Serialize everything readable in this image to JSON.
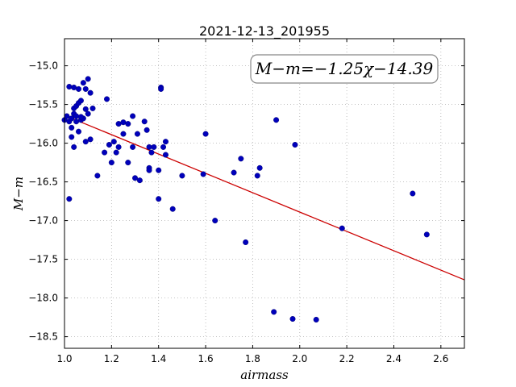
{
  "chart_data": {
    "type": "scatter",
    "title": "2021-12-13_201955",
    "xlabel": "airmass",
    "ylabel": "M−m",
    "xlim": [
      1.0,
      2.7
    ],
    "ylim": [
      -18.65,
      -14.65
    ],
    "xticks": [
      1.0,
      1.2,
      1.4,
      1.6,
      1.8,
      2.0,
      2.2,
      2.4,
      2.6
    ],
    "yticks": [
      -15.0,
      -15.5,
      -16.0,
      -16.5,
      -17.0,
      -17.5,
      -18.0,
      -18.5
    ],
    "xtick_labels": [
      "1.0",
      "1.2",
      "1.4",
      "1.6",
      "1.8",
      "2.0",
      "2.2",
      "2.4",
      "2.6"
    ],
    "ytick_labels": [
      "−15.0",
      "−15.5",
      "−16.0",
      "−16.5",
      "−17.0",
      "−17.5",
      "−18.0",
      "−18.5"
    ],
    "grid": true,
    "annotation": "M−m=−1.25χ−14.39",
    "fit": {
      "slope": -1.25,
      "intercept": -14.39,
      "color": "#cc0000"
    },
    "marker_color": "#0000bb",
    "points": {
      "x": [
        1.0,
        1.01,
        1.02,
        1.02,
        1.03,
        1.03,
        1.03,
        1.04,
        1.04,
        1.04,
        1.05,
        1.05,
        1.05,
        1.06,
        1.06,
        1.06,
        1.07,
        1.07,
        1.08,
        1.08,
        1.09,
        1.09,
        1.1,
        1.1,
        1.11,
        1.11,
        1.02,
        1.04,
        1.12,
        1.14,
        1.17,
        1.18,
        1.19,
        1.2,
        1.21,
        1.22,
        1.23,
        1.23,
        1.25,
        1.25,
        1.27,
        1.27,
        1.29,
        1.29,
        1.3,
        1.31,
        1.32,
        1.34,
        1.35,
        1.36,
        1.36,
        1.36,
        1.37,
        1.38,
        1.4,
        1.4,
        1.41,
        1.41,
        1.42,
        1.43,
        1.43,
        1.46,
        1.5,
        1.59,
        1.6,
        1.64,
        1.72,
        1.75,
        1.77,
        1.83,
        1.82,
        1.89,
        1.9,
        1.97,
        1.98,
        2.07,
        2.18,
        2.48,
        2.54,
        1.09,
        1.07
      ],
      "y": [
        -15.7,
        -15.65,
        -15.27,
        -15.72,
        -15.8,
        -15.68,
        -15.92,
        -15.28,
        -15.55,
        -15.62,
        -15.52,
        -15.65,
        -15.72,
        -15.3,
        -15.48,
        -15.85,
        -15.7,
        -15.45,
        -15.22,
        -15.68,
        -15.3,
        -15.56,
        -15.17,
        -15.62,
        -15.35,
        -15.95,
        -16.72,
        -16.05,
        -15.55,
        -16.42,
        -16.12,
        -15.43,
        -16.02,
        -16.25,
        -15.98,
        -16.12,
        -16.05,
        -15.75,
        -15.73,
        -15.88,
        -16.25,
        -15.75,
        -16.05,
        -15.65,
        -16.45,
        -15.88,
        -16.48,
        -15.72,
        -15.83,
        -16.05,
        -16.32,
        -16.35,
        -16.12,
        -16.05,
        -16.72,
        -16.35,
        -15.28,
        -15.3,
        -16.05,
        -15.98,
        -16.15,
        -16.85,
        -16.42,
        -16.4,
        -15.88,
        -17.0,
        -16.38,
        -16.2,
        -17.28,
        -16.32,
        -16.42,
        -18.18,
        -15.7,
        -18.27,
        -16.02,
        -18.28,
        -17.1,
        -16.65,
        -17.18,
        -15.98,
        -15.66
      ]
    }
  }
}
